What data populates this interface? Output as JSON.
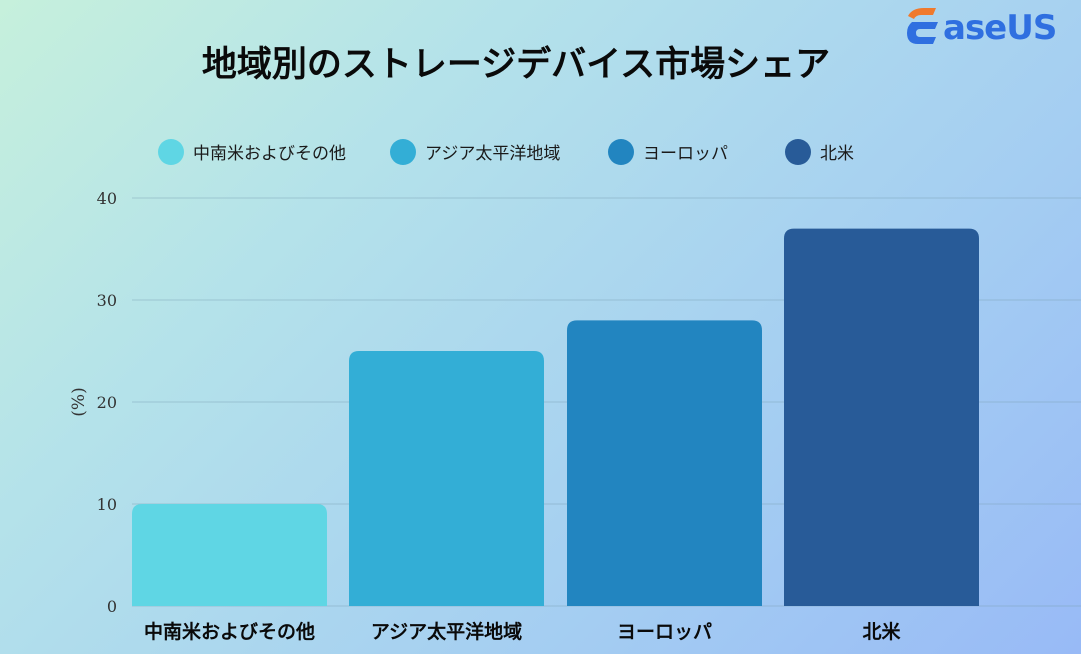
{
  "brand": {
    "logo_text": "aseUS",
    "logo_mark_icon": "easeus-e-icon",
    "logo_colors": {
      "top": "#f07a2d",
      "main": "#2f6fe0"
    }
  },
  "chart_data": {
    "type": "bar",
    "title": "地域別のストレージデバイス市場シェア",
    "categories": [
      "中南米およびその他",
      "アジア太平洋地域",
      "ヨーロッパ",
      "北米"
    ],
    "values": [
      10,
      25,
      28,
      37
    ],
    "colors": [
      "#5fd6e4",
      "#33aed6",
      "#2285c0",
      "#285b98"
    ],
    "legend": [
      "中南米およびその他",
      "アジア太平洋地域",
      "ヨーロッパ",
      "北米"
    ],
    "legend_position": "top",
    "ylabel": "(%)",
    "xlabel": "",
    "ylim": [
      0,
      40
    ],
    "yticks": [
      0,
      10,
      20,
      30,
      40
    ],
    "grid": true
  }
}
